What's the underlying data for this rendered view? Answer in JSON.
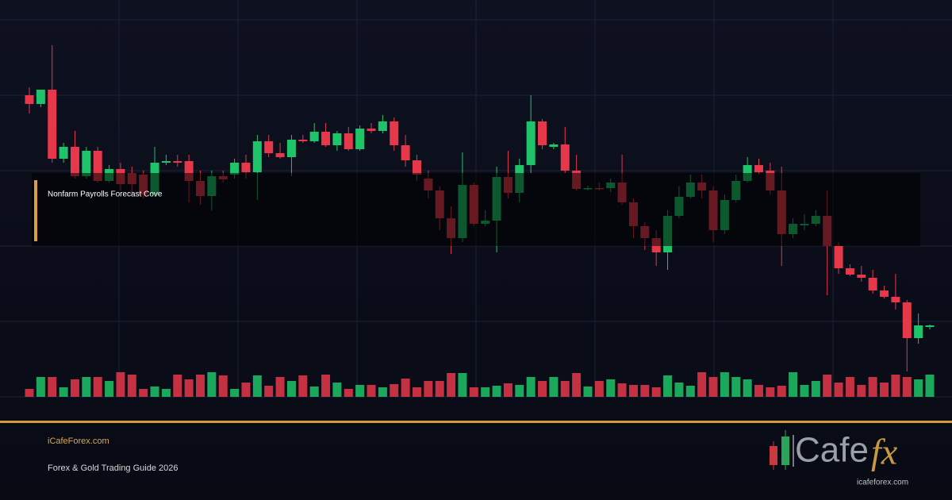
{
  "chart_data": {
    "type": "candlestick",
    "ylim": [
      0,
      475
    ],
    "yticks": [
      0,
      95,
      190,
      285,
      380,
      475
    ],
    "grid": true,
    "y2lim": [
      0,
      475
    ],
    "up_color": "#1fc46a",
    "down_color": "#e5384a",
    "open": [
      380,
      369,
      387,
      300,
      315,
      278,
      310,
      272,
      287,
      282,
      280,
      255,
      295,
      297,
      297,
      272,
      253,
      278,
      280,
      295,
      283,
      322,
      307,
      302,
      324,
      322,
      334,
      317,
      332,
      312,
      338,
      335,
      347,
      317,
      298,
      275,
      260,
      225,
      200,
      267,
      218,
      222,
      277,
      257,
      292,
      347,
      315,
      318,
      285,
      262,
      263,
      263,
      270,
      245,
      215,
      200,
      182,
      228,
      252,
      270,
      260,
      210,
      248,
      272,
      292,
      285,
      260,
      205,
      216,
      218,
      228,
      190,
      162,
      154,
      150,
      134,
      126,
      119,
      74,
      88
    ],
    "close": [
      369,
      387,
      300,
      315,
      278,
      310,
      272,
      287,
      268,
      268,
      255,
      295,
      297,
      295,
      272,
      253,
      278,
      274,
      295,
      283,
      322,
      307,
      302,
      324,
      322,
      334,
      317,
      332,
      312,
      338,
      335,
      347,
      317,
      298,
      280,
      260,
      225,
      200,
      267,
      218,
      222,
      277,
      257,
      292,
      347,
      317,
      318,
      285,
      262,
      263,
      262,
      270,
      245,
      215,
      200,
      182,
      228,
      252,
      270,
      260,
      210,
      248,
      272,
      292,
      283,
      260,
      205,
      218,
      218,
      228,
      190,
      162,
      154,
      150,
      134,
      126,
      119,
      74,
      90,
      90
    ],
    "high": [
      390,
      387,
      443,
      320,
      335,
      315,
      315,
      292,
      295,
      290,
      285,
      315,
      305,
      305,
      305,
      285,
      285,
      285,
      300,
      305,
      330,
      330,
      320,
      330,
      330,
      345,
      345,
      335,
      340,
      342,
      345,
      355,
      352,
      330,
      305,
      285,
      265,
      240,
      308,
      270,
      235,
      290,
      310,
      300,
      380,
      350,
      320,
      340,
      305,
      266,
      270,
      275,
      305,
      250,
      220,
      210,
      235,
      265,
      280,
      280,
      265,
      255,
      280,
      302,
      300,
      295,
      290,
      225,
      230,
      235,
      260,
      195,
      167,
      165,
      160,
      140,
      155,
      122,
      105,
      91
    ],
    "low": [
      357,
      365,
      295,
      295,
      275,
      275,
      270,
      270,
      260,
      255,
      250,
      252,
      292,
      290,
      245,
      242,
      235,
      270,
      275,
      275,
      248,
      302,
      300,
      278,
      320,
      320,
      315,
      310,
      310,
      310,
      332,
      332,
      310,
      290,
      272,
      250,
      210,
      180,
      195,
      215,
      215,
      182,
      250,
      245,
      282,
      312,
      312,
      282,
      260,
      260,
      260,
      258,
      242,
      200,
      185,
      165,
      160,
      225,
      250,
      250,
      195,
      205,
      245,
      270,
      280,
      255,
      165,
      200,
      210,
      215,
      128,
      155,
      152,
      145,
      130,
      124,
      110,
      32,
      67,
      85
    ],
    "volume": [
      10,
      25,
      25,
      12,
      22,
      25,
      25,
      20,
      31,
      28,
      10,
      13,
      10,
      28,
      22,
      28,
      31,
      27,
      10,
      18,
      27,
      14,
      25,
      20,
      27,
      13,
      28,
      18,
      10,
      15,
      15,
      12,
      16,
      23,
      12,
      20,
      20,
      30,
      30,
      12,
      12,
      14,
      17,
      15,
      25,
      20,
      25,
      20,
      30,
      13,
      20,
      22,
      17,
      15,
      15,
      12,
      27,
      18,
      14,
      31,
      25,
      31,
      25,
      22,
      15,
      12,
      14,
      31,
      15,
      20,
      28,
      18,
      25,
      15,
      25,
      18,
      28,
      25,
      22,
      28
    ],
    "annotation": "Nonfarm Payrolls Forecast Cove"
  },
  "footer": {
    "site": "iCafeForex.com",
    "subtitle": "Forex & Gold Trading Guide 2026"
  },
  "logo": {
    "word": "Cafe",
    "accent": "fx",
    "url": "icafeforex.com"
  }
}
